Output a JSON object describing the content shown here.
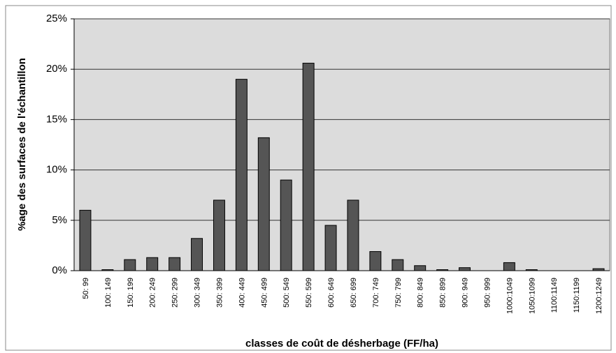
{
  "chart_data": {
    "type": "bar",
    "x_label": "classes de coût de désherbage (FF/ha)",
    "y_label": "%age des surfaces de l'échantillon",
    "categories": [
      "50: 99",
      "100: 149",
      "150: 199",
      "200: 249",
      "250: 299",
      "300: 349",
      "350: 399",
      "400: 449",
      "450: 499",
      "500: 549",
      "550: 599",
      "600: 649",
      "650: 699",
      "700: 749",
      "750: 799",
      "800: 849",
      "850: 899",
      "900: 949",
      "950: 999",
      "1000:1049",
      "1050:1099",
      "1100:1149",
      "1150:1199",
      "1200:1249"
    ],
    "values": [
      6.0,
      0.1,
      1.1,
      1.3,
      1.3,
      3.2,
      7.0,
      19.0,
      13.2,
      9.0,
      20.6,
      4.5,
      7.0,
      1.9,
      1.1,
      0.5,
      0.1,
      0.3,
      0,
      0.8,
      0.1,
      0,
      0,
      0.2
    ],
    "color": "#555555",
    "ylim": [
      0,
      25
    ],
    "yticks": [
      {
        "value": 0,
        "label": "0%"
      },
      {
        "value": 5,
        "label": "5%"
      },
      {
        "value": 10,
        "label": "10%"
      },
      {
        "value": 15,
        "label": "15%"
      },
      {
        "value": 20,
        "label": "20%"
      },
      {
        "value": 25,
        "label": "25%"
      }
    ],
    "grid": true
  }
}
